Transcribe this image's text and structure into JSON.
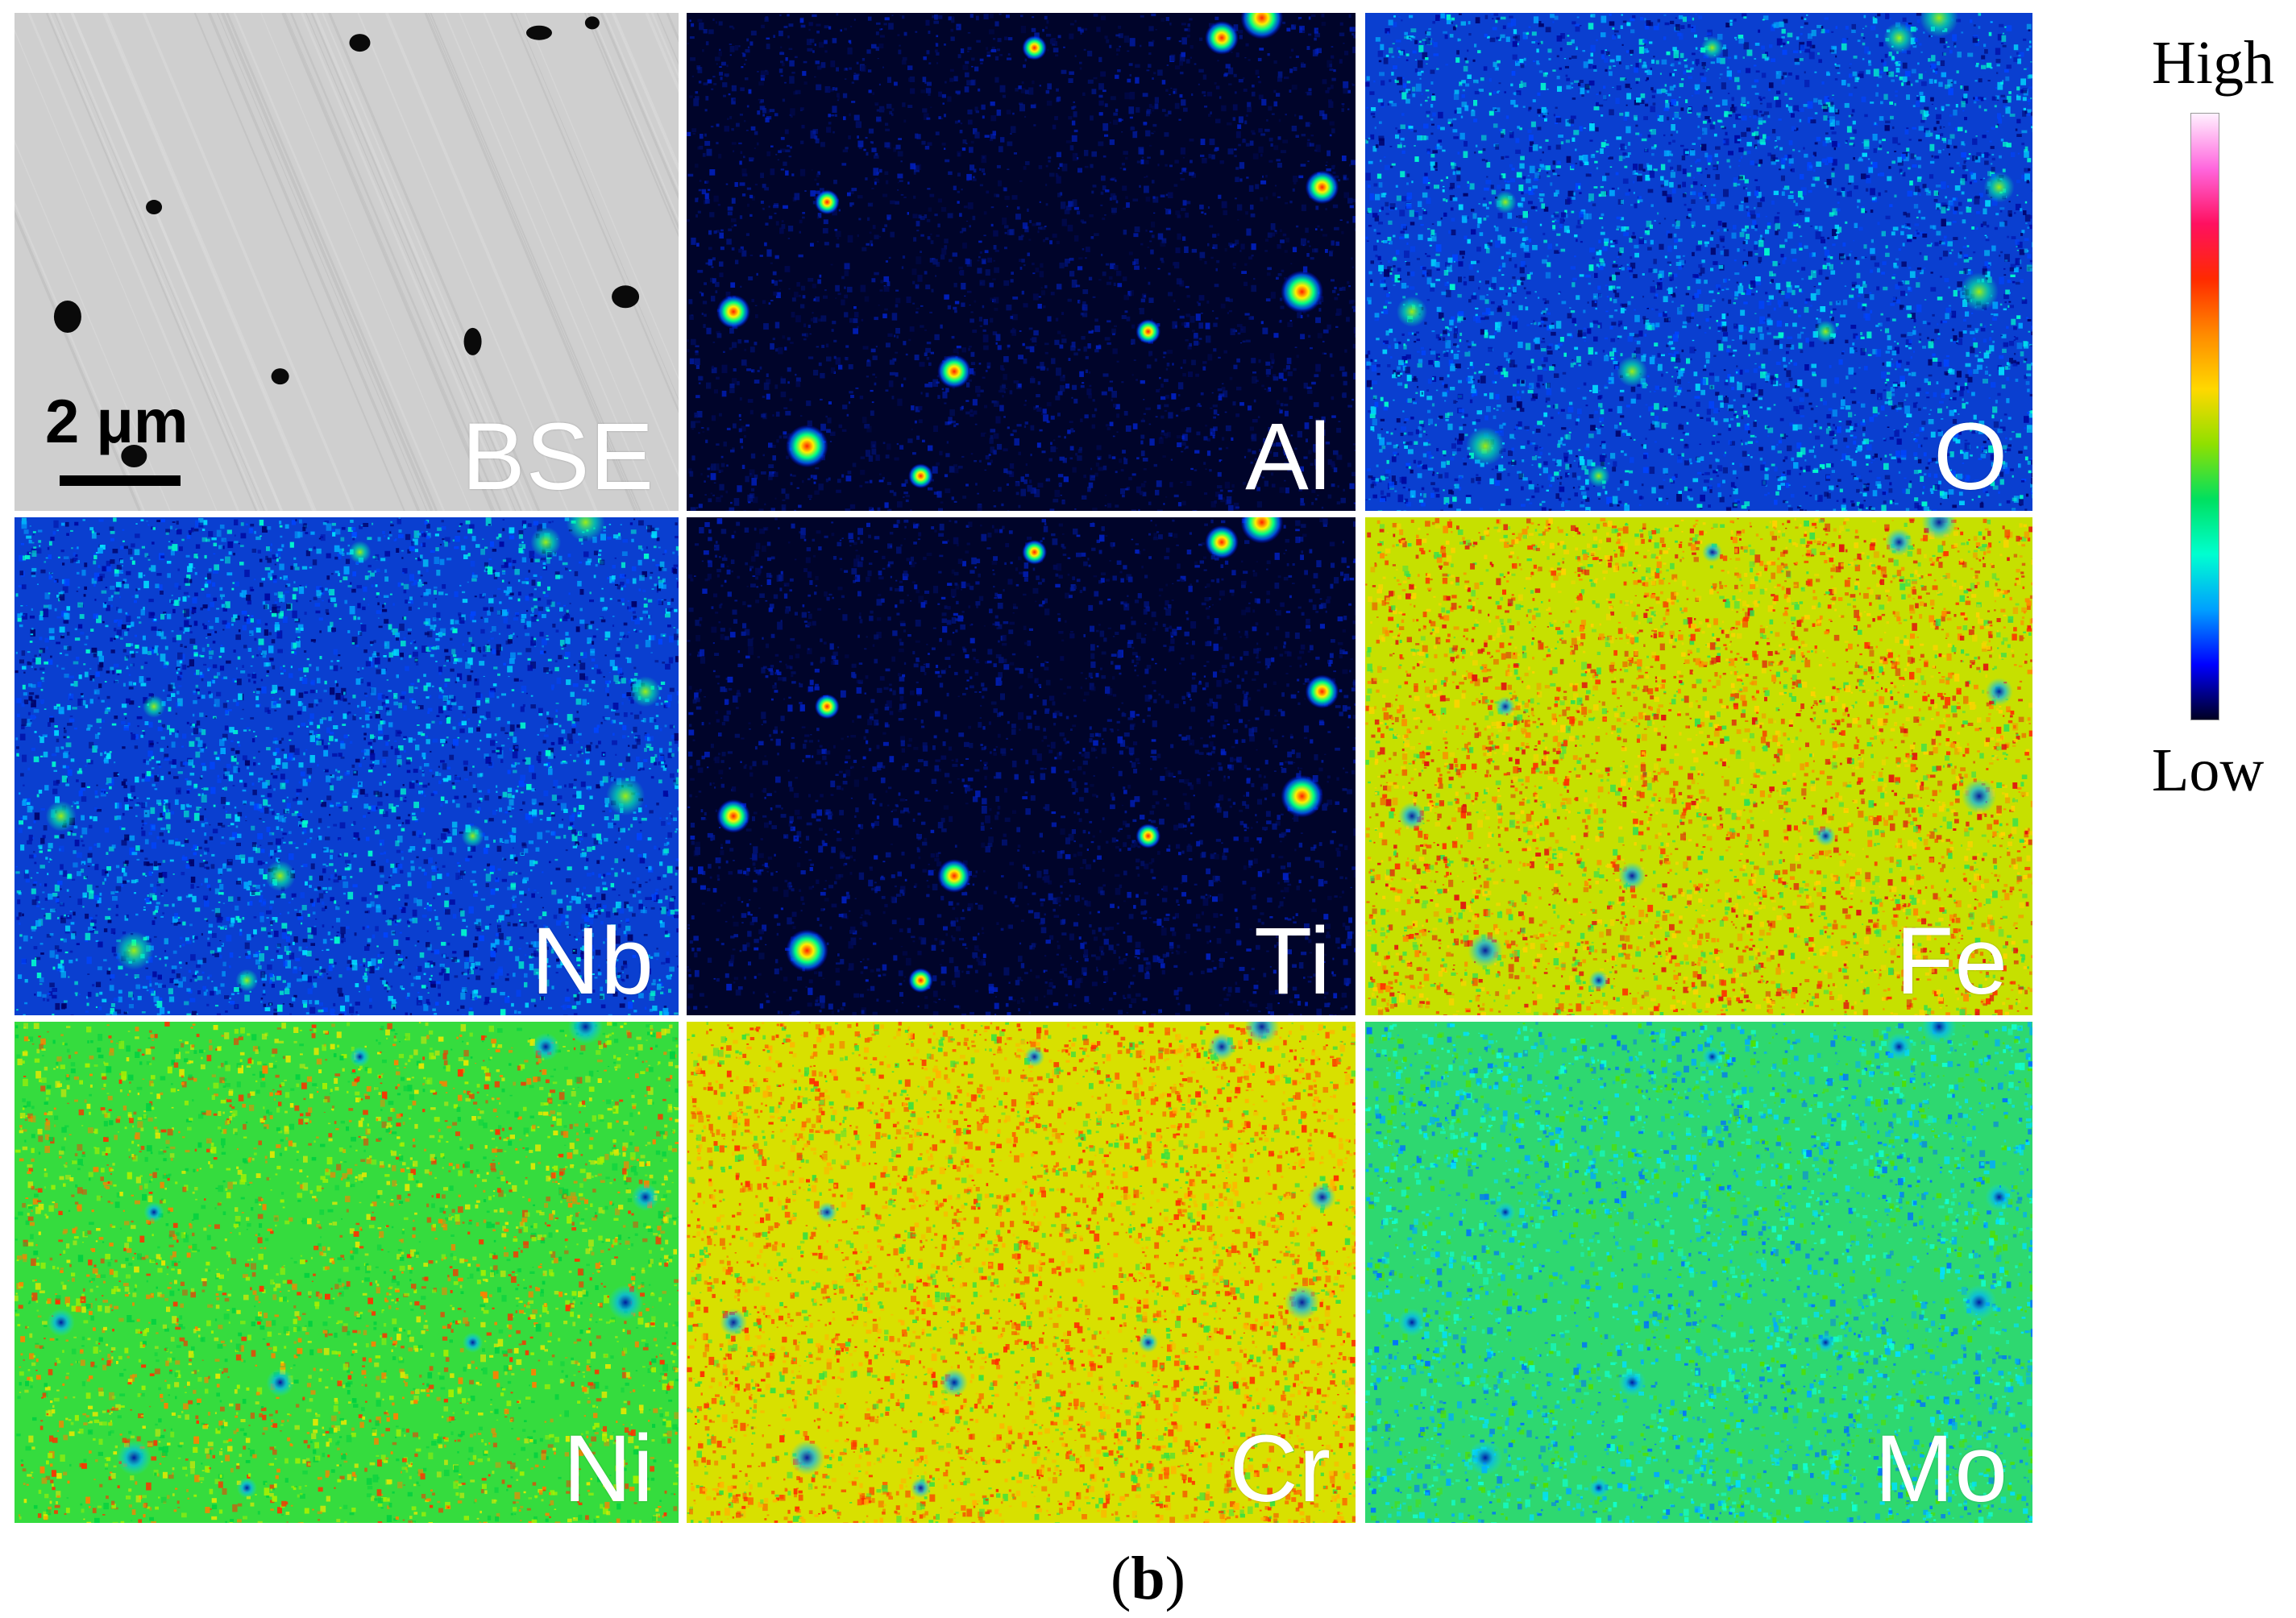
{
  "panels": [
    {
      "id": "bse",
      "label": "BSE",
      "kind": "gray"
    },
    {
      "id": "al",
      "label": "Al",
      "kind": "sparse"
    },
    {
      "id": "o",
      "label": "O",
      "kind": "noisy_blue"
    },
    {
      "id": "nb",
      "label": "Nb",
      "kind": "noisy_blue"
    },
    {
      "id": "ti",
      "label": "Ti",
      "kind": "sparse"
    },
    {
      "id": "fe",
      "label": "Fe",
      "kind": "warm"
    },
    {
      "id": "ni",
      "label": "Ni",
      "kind": "green"
    },
    {
      "id": "cr",
      "label": "Cr",
      "kind": "yellow"
    },
    {
      "id": "mo",
      "label": "Mo",
      "kind": "teal"
    }
  ],
  "scale_bar": {
    "label": "2 μm"
  },
  "colorbar": {
    "high_label": "High",
    "low_label": "Low",
    "stops": [
      "#fff0ff",
      "#ff66dd",
      "#ff1060",
      "#ff2a00",
      "#ff8a00",
      "#ffd800",
      "#90e000",
      "#00e060",
      "#00ffd0",
      "#00a0ff",
      "#0000ff",
      "#000022"
    ]
  },
  "caption": {
    "open": "(",
    "letter": "b",
    "close": ")"
  },
  "colors": {
    "bse_background": "#cfcfcf",
    "particle_dark": "#0a0a0a"
  }
}
